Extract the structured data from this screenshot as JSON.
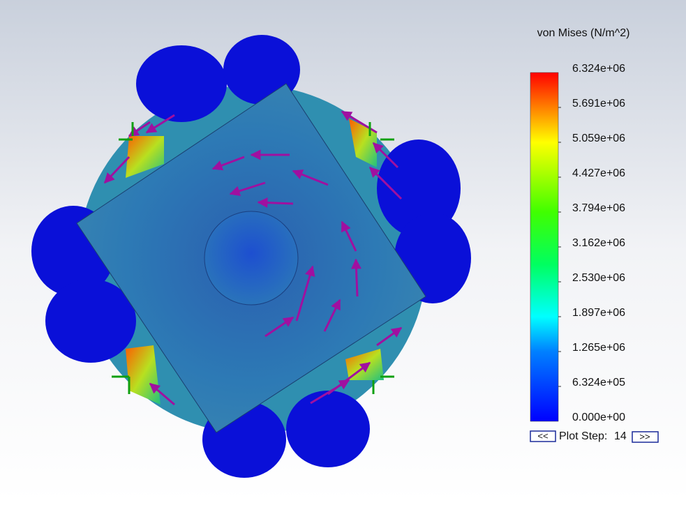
{
  "legend": {
    "title": "von Mises (N/m^2)",
    "ticks": [
      "6.324e+06",
      "5.691e+06",
      "5.059e+06",
      "4.427e+06",
      "3.794e+06",
      "3.162e+06",
      "2.530e+06",
      "1.897e+06",
      "1.265e+06",
      "6.324e+05",
      "0.000e+00"
    ]
  },
  "plot_step": {
    "prev": "<<",
    "label": "Plot Step:",
    "step": "14",
    "next": ">>"
  }
}
